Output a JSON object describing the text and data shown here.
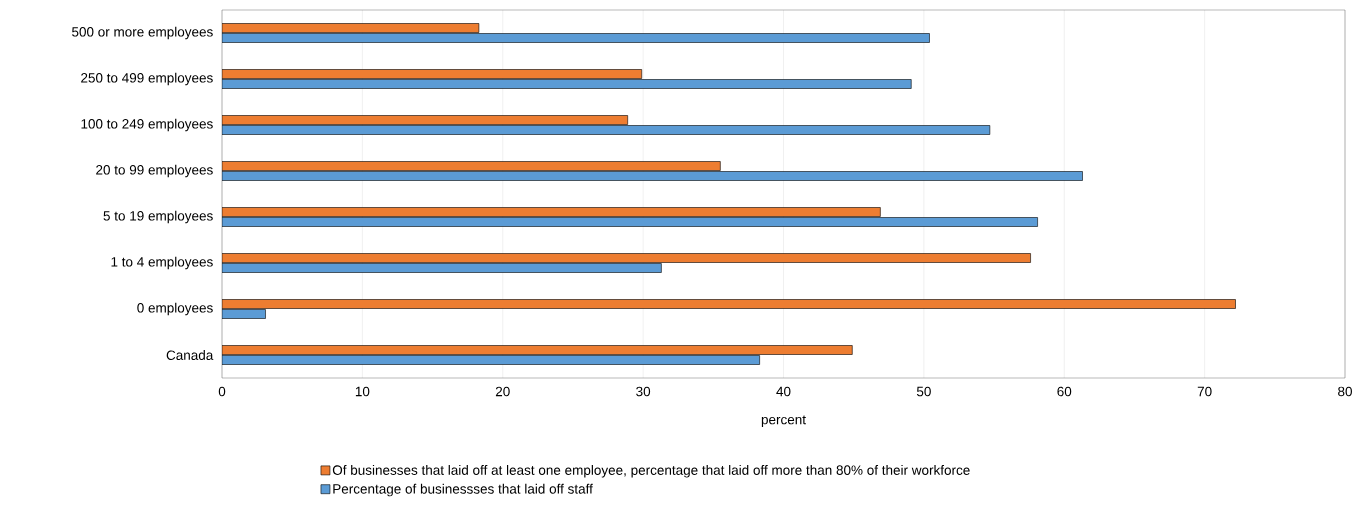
{
  "chart_data": {
    "type": "bar",
    "orientation": "horizontal",
    "xlabel": "percent",
    "categories": [
      "500 or more employees",
      "250 to 499 employees",
      "100 to 249 employees",
      "20 to 99 employees",
      "5 to 19 employees",
      "1 to 4 employees",
      "0 employees",
      "Canada"
    ],
    "series": [
      {
        "name": "Of businesses that laid off at least one employee, percentage that laid off more than 80% of their workforce",
        "color": "#ed7d31",
        "values": [
          18.3,
          29.9,
          28.9,
          35.5,
          46.9,
          57.6,
          72.2,
          44.9
        ]
      },
      {
        "name": "Percentage of businessses that laid off staff",
        "color": "#5b9bd5",
        "values": [
          50.4,
          49.1,
          54.7,
          61.3,
          58.1,
          31.3,
          3.1,
          38.3
        ]
      }
    ],
    "xlim": [
      0,
      80
    ],
    "xticks": [
      0,
      10,
      20,
      30,
      40,
      50,
      60,
      70,
      80
    ],
    "grid": "x",
    "legend": "bottom"
  }
}
